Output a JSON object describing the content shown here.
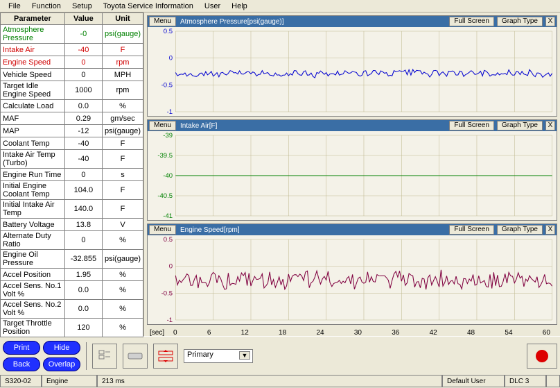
{
  "menubar": [
    "File",
    "Function",
    "Setup",
    "Toyota Service Information",
    "User",
    "Help"
  ],
  "table_headers": [
    "Parameter",
    "Value",
    "Unit"
  ],
  "params": [
    {
      "name": "Atmosphere Pressure",
      "value": "-0",
      "unit": "psi(gauge)",
      "color": "#008000"
    },
    {
      "name": "Intake Air",
      "value": "-40",
      "unit": "F",
      "color": "#d00000"
    },
    {
      "name": "Engine Speed",
      "value": "0",
      "unit": "rpm",
      "color": "#d00000"
    },
    {
      "name": "Vehicle Speed",
      "value": "0",
      "unit": "MPH",
      "color": "#000"
    },
    {
      "name": "Target Idle Engine Speed",
      "value": "1000",
      "unit": "rpm",
      "color": "#000"
    },
    {
      "name": "Calculate Load",
      "value": "0.0",
      "unit": "%",
      "color": "#000"
    },
    {
      "name": "MAF",
      "value": "0.29",
      "unit": "gm/sec",
      "color": "#000"
    },
    {
      "name": "MAP",
      "value": "-12",
      "unit": "psi(gauge)",
      "color": "#000"
    },
    {
      "name": "Coolant Temp",
      "value": "-40",
      "unit": "F",
      "color": "#000"
    },
    {
      "name": "Intake Air Temp (Turbo)",
      "value": "-40",
      "unit": "F",
      "color": "#000"
    },
    {
      "name": "Engine Run Time",
      "value": "0",
      "unit": "s",
      "color": "#000"
    },
    {
      "name": "Initial Engine Coolant Temp",
      "value": "104.0",
      "unit": "F",
      "color": "#000"
    },
    {
      "name": "Initial Intake Air Temp",
      "value": "140.0",
      "unit": "F",
      "color": "#000"
    },
    {
      "name": "Battery Voltage",
      "value": "13.8",
      "unit": "V",
      "color": "#000"
    },
    {
      "name": "Alternate Duty Ratio",
      "value": "0",
      "unit": "%",
      "color": "#000"
    },
    {
      "name": "Engine Oil Pressure",
      "value": "-32.855",
      "unit": "psi(gauge)",
      "color": "#000"
    },
    {
      "name": "Accel Position",
      "value": "1.95",
      "unit": "%",
      "color": "#000"
    },
    {
      "name": "Accel Sens. No.1 Volt %",
      "value": "0.0",
      "unit": "%",
      "color": "#000"
    },
    {
      "name": "Accel Sens. No.2 Volt %",
      "value": "0.0",
      "unit": "%",
      "color": "#000"
    },
    {
      "name": "Target Throttle Position",
      "value": "120",
      "unit": "%",
      "color": "#000"
    }
  ],
  "chart_buttons": {
    "menu": "Menu",
    "fullscreen": "Full Screen",
    "graphtype": "Graph Type",
    "close": "X"
  },
  "charts": [
    {
      "title": "Atmosphere Pressure[psi(gauge)]",
      "yticks": [
        "0.5",
        "0",
        "-0.5",
        "-1"
      ],
      "line_color": "#0000d0",
      "grid": "#c0b890",
      "ylim": [
        -1.2,
        0.8
      ],
      "baseline": -0.25,
      "noise": 0.15,
      "type": "noisy"
    },
    {
      "title": "Intake Air[F]",
      "yticks": [
        "-39",
        "-39.5",
        "-40",
        "-40.5",
        "-41"
      ],
      "line_color": "#008000",
      "grid": "#c0b890",
      "ylim": [
        -41.2,
        -38.8
      ],
      "baseline": -40,
      "noise": 0,
      "type": "flat"
    },
    {
      "title": "Engine Speed[rpm]",
      "yticks": [
        "0.5",
        "0",
        "-0.5",
        "-1"
      ],
      "line_color": "#800040",
      "grid": "#c0b890",
      "ylim": [
        -1.2,
        0.8
      ],
      "baseline": -0.2,
      "noise": 0.35,
      "type": "noisy"
    }
  ],
  "xaxis": {
    "label": "[sec]",
    "ticks": [
      "0",
      "6",
      "12",
      "18",
      "24",
      "30",
      "36",
      "42",
      "48",
      "54",
      "60"
    ]
  },
  "bottom": {
    "print": "Print",
    "hide": "Hide",
    "back": "Back",
    "overlap": "Overlap",
    "dropdown": "Primary"
  },
  "status": {
    "s1": "S320-02",
    "s2": "Engine",
    "s3": "213 ms",
    "s4": "Default User",
    "s5": "DLC 3"
  }
}
